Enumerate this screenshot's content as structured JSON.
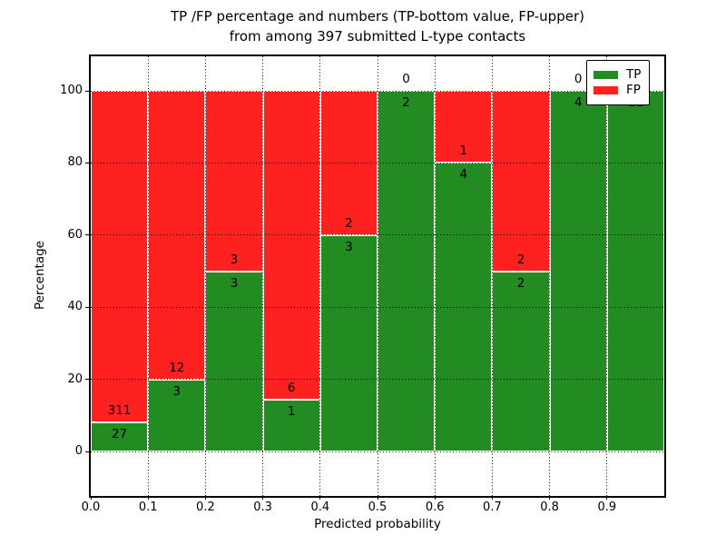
{
  "title": {
    "line1": "TP /FP percentage and numbers (TP-bottom value, FP-upper)",
    "line2": "from among 397 submitted L-type contacts"
  },
  "axes": {
    "xlabel": "Predicted probability",
    "ylabel": "Percentage"
  },
  "legend": {
    "position": "upper right",
    "entries": [
      {
        "label": "TP",
        "color": "#228b22"
      },
      {
        "label": "FP",
        "color": "#ff2020"
      }
    ]
  },
  "chart_data": {
    "type": "bar",
    "stacked": true,
    "title": "TP /FP percentage and numbers (TP-bottom value, FP-upper) from among 397 submitted L-type contacts",
    "xlabel": "Predicted probability",
    "ylabel": "Percentage",
    "total_contacts": 397,
    "bin_width": 0.1,
    "categories": [
      "0.0-0.1",
      "0.1-0.2",
      "0.2-0.3",
      "0.3-0.4",
      "0.4-0.5",
      "0.5-0.6",
      "0.6-0.7",
      "0.7-0.8",
      "0.8-0.9",
      "0.9-1.0"
    ],
    "x_tick_labels": [
      "0.0",
      "0.1",
      "0.2",
      "0.3",
      "0.4",
      "0.5",
      "0.6",
      "0.7",
      "0.8",
      "0.9"
    ],
    "y_ticks": [
      0,
      20,
      40,
      60,
      80,
      100
    ],
    "xlim": [
      0.0,
      1.0
    ],
    "ylim_display": [
      -12,
      110
    ],
    "grid": "dotted",
    "series": [
      {
        "name": "TP",
        "stack_position": "bottom",
        "color": "#228b22",
        "counts": [
          27,
          3,
          3,
          1,
          3,
          2,
          4,
          2,
          4,
          11
        ]
      },
      {
        "name": "FP",
        "stack_position": "top",
        "color": "#ff2020",
        "counts": [
          311,
          12,
          3,
          6,
          2,
          0,
          1,
          2,
          0,
          0
        ]
      }
    ],
    "tp_percentages": [
      7.99,
      20.0,
      50.0,
      14.29,
      60.0,
      100.0,
      80.0,
      50.0,
      100.0,
      100.0
    ]
  },
  "colors": {
    "tp": "#228b22",
    "fp": "#ff2020",
    "bar_edge": "#ffffff",
    "grid": "#000000",
    "background": "#ffffff"
  }
}
